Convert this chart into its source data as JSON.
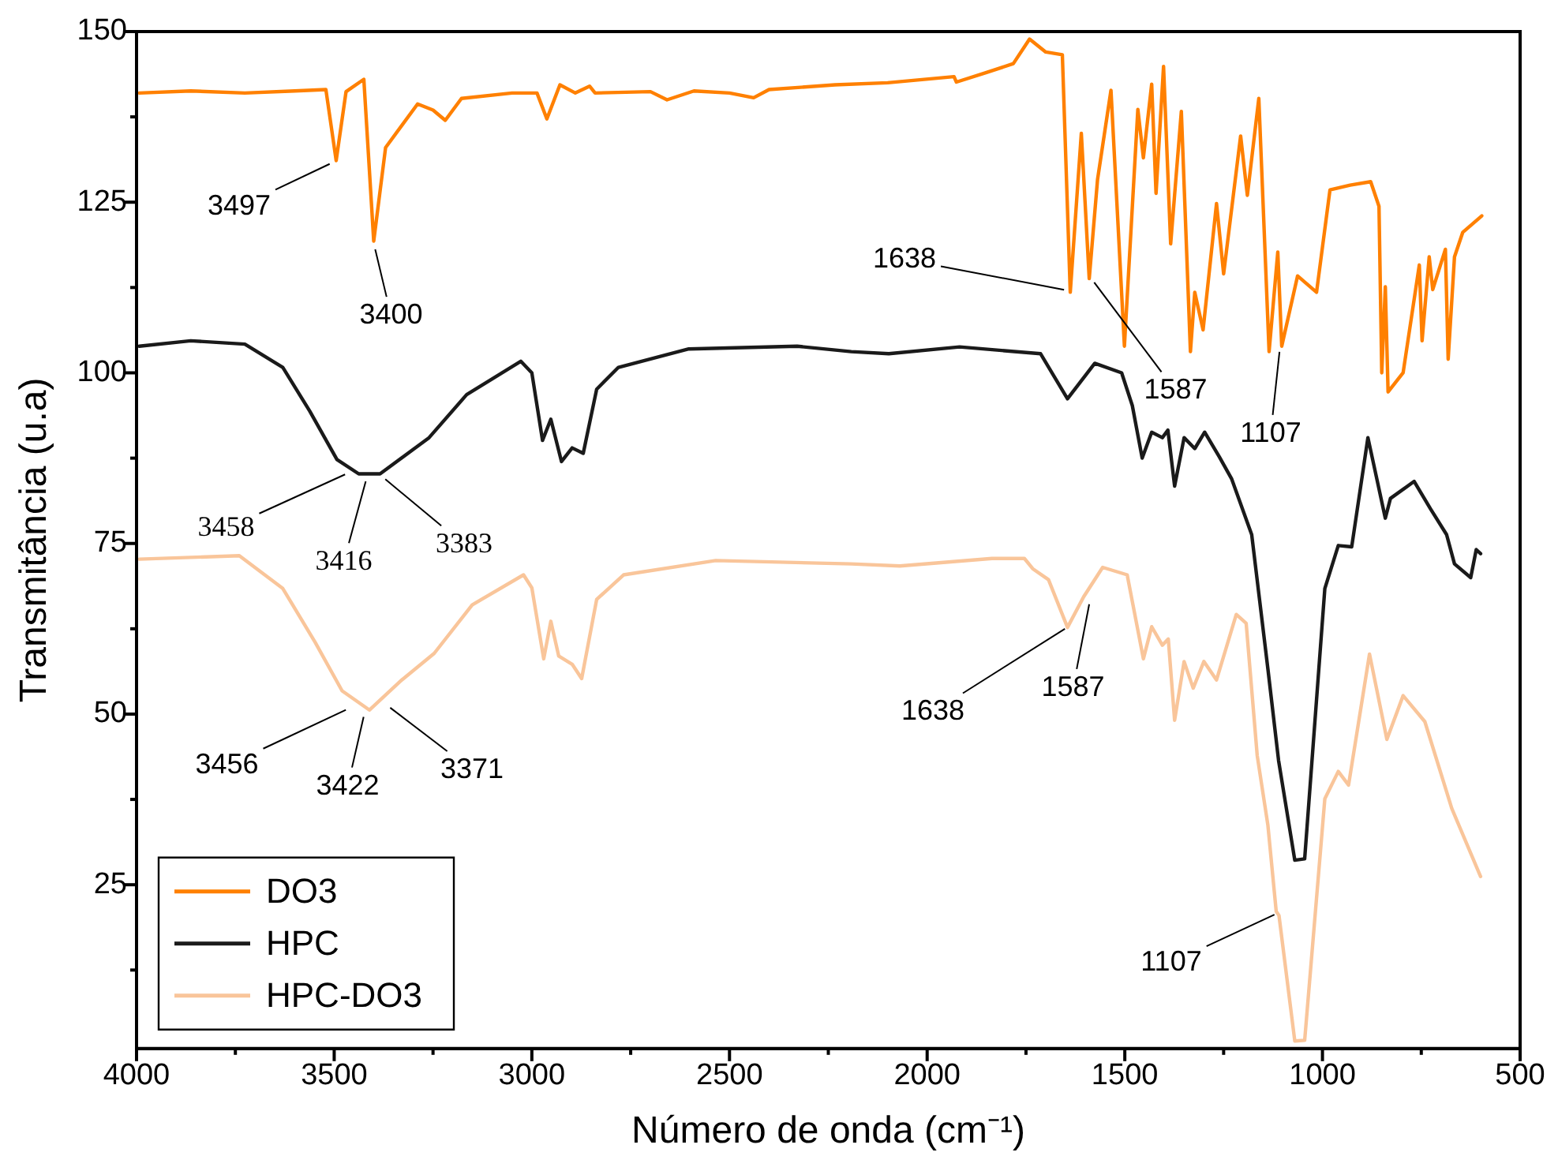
{
  "chart_data": {
    "type": "line",
    "xlabel": "Número de onda (cm⁻¹)",
    "ylabel": "Transmitância (u.a)",
    "xlim": [
      4000,
      500
    ],
    "ylim": [
      1,
      150
    ],
    "xticks": [
      4000,
      {
        "value": 3750,
        "label": null
      },
      3500,
      {
        "value": 3250,
        "label": null
      },
      3000,
      {
        "value": 2750,
        "label": null
      },
      2500,
      {
        "value": 2250,
        "label": null
      },
      2000,
      {
        "value": 1750,
        "label": null
      },
      1500,
      {
        "value": 1250,
        "label": null
      },
      1000,
      {
        "value": 750,
        "label": null
      },
      500
    ],
    "yticks": [
      {
        "value": 12.5,
        "label": null
      },
      25,
      {
        "value": 37.5,
        "label": null
      },
      50,
      {
        "value": 62.5,
        "label": null
      },
      75,
      {
        "value": 87.5,
        "label": null
      },
      100,
      {
        "value": 112.5,
        "label": null
      },
      125,
      {
        "value": 137.5,
        "label": null
      },
      150
    ],
    "grid": false,
    "legend": "bottom left",
    "marker": "none",
    "line_style": "solid",
    "series": [
      {
        "name": "DO3",
        "color": "#ff8000",
        "x": [
          3993,
          3863,
          3726,
          3600,
          3521,
          3495,
          3470,
          3425,
          3400,
          3370,
          3289,
          3250,
          3219,
          3178,
          3050,
          2987,
          2962,
          2929,
          2890,
          2854,
          2840,
          2700,
          2658,
          2590,
          2500,
          2439,
          2400,
          2233,
          2100,
          1932,
          1926,
          1850,
          1782,
          1741,
          1700,
          1658,
          1638,
          1610,
          1590,
          1569,
          1535,
          1501,
          1467,
          1453,
          1432,
          1421,
          1402,
          1384,
          1357,
          1334,
          1323,
          1302,
          1268,
          1250,
          1207,
          1190,
          1161,
          1135,
          1113,
          1103,
          1063,
          1015,
          981,
          930,
          878,
          857,
          850,
          841,
          834,
          796,
          755,
          748,
          730,
          721,
          689,
          682,
          666,
          645,
          597
        ],
        "values": [
          141,
          141.3,
          141,
          141.3,
          141.5,
          131.1,
          141.2,
          143,
          119.3,
          133,
          139.4,
          138.5,
          137,
          140.2,
          141,
          141,
          137.2,
          142.2,
          141,
          142,
          141,
          141.2,
          140,
          141.3,
          141,
          140.3,
          141.5,
          142.2,
          142.5,
          143.4,
          142.6,
          144,
          145.3,
          148.9,
          147,
          146.6,
          111.8,
          135.1,
          113.8,
          128.3,
          141.4,
          103.9,
          138.6,
          131.5,
          142.3,
          126.3,
          144.9,
          118.9,
          138.3,
          103.1,
          111.8,
          106.3,
          124.8,
          114.5,
          134.7,
          126,
          140.2,
          103.1,
          117.7,
          103.9,
          114.2,
          111.8,
          126.8,
          127.5,
          128,
          124.4,
          100,
          112.6,
          97.2,
          100,
          115.8,
          104.7,
          117,
          112.2,
          118.1,
          102,
          117,
          120.6,
          123
        ]
      },
      {
        "name": "HPC",
        "color": "#1a1a1a",
        "x": [
          3993,
          3863,
          3726,
          3630,
          3562,
          3493,
          3438,
          3384,
          3260,
          3165,
          3028,
          3000,
          2973,
          2952,
          2925,
          2898,
          2870,
          2836,
          2781,
          2603,
          2329,
          2192,
          2097,
          1918,
          1713,
          1645,
          1576,
          1508,
          1481,
          1456,
          1432,
          1405,
          1391,
          1374,
          1350,
          1323,
          1298,
          1261,
          1230,
          1179,
          1138,
          1111,
          1070,
          1045,
          994,
          960,
          926,
          885,
          841,
          828,
          768,
          727,
          686,
          666,
          625,
          611,
          600
        ],
        "values": [
          103.9,
          104.7,
          104.2,
          100.8,
          94.4,
          87.3,
          85.2,
          85.2,
          90.5,
          96.8,
          101.7,
          100,
          90.1,
          93.2,
          87,
          89,
          88.2,
          97.6,
          100.8,
          103.5,
          103.9,
          103.1,
          102.8,
          103.8,
          102.8,
          96.2,
          101.4,
          100,
          95.2,
          87.5,
          91.3,
          90.5,
          91.6,
          83.4,
          90.5,
          88.9,
          91.3,
          87.7,
          84.5,
          76.3,
          56.6,
          43.2,
          28.6,
          28.8,
          68.4,
          74.7,
          74.5,
          90.5,
          78.7,
          81.6,
          84.1,
          80.1,
          76.3,
          72,
          70,
          74.1,
          73.5
        ]
      },
      {
        "name": "HPC-DO3",
        "color": "#f9c59a",
        "x": [
          3993,
          3740,
          3630,
          3548,
          3480,
          3411,
          3329,
          3247,
          3151,
          3021,
          3000,
          2970,
          2952,
          2932,
          2898,
          2874,
          2836,
          2768,
          2535,
          2192,
          2069,
          1836,
          1754,
          1733,
          1693,
          1645,
          1604,
          1556,
          1494,
          1453,
          1432,
          1405,
          1390,
          1374,
          1350,
          1327,
          1300,
          1268,
          1218,
          1193,
          1165,
          1138,
          1117,
          1110,
          1070,
          1045,
          994,
          960,
          934,
          881,
          837,
          796,
          741,
          673,
          600
        ],
        "values": [
          72.7,
          73.2,
          68.4,
          60.5,
          53.4,
          50.6,
          55,
          58.9,
          66,
          70.4,
          68.5,
          58.1,
          63.6,
          58.5,
          57.3,
          55.2,
          66.8,
          70.4,
          72.5,
          72,
          71.7,
          72.8,
          72.8,
          71.3,
          69.7,
          62.7,
          67.2,
          71.5,
          70.4,
          58.1,
          62.8,
          60.1,
          61,
          49.1,
          57.7,
          53.8,
          57.7,
          55,
          64.6,
          63.3,
          43.9,
          33.7,
          21.1,
          20.5,
          2.1,
          2.2,
          37.6,
          41.6,
          39.6,
          58.8,
          46.3,
          52.7,
          48.9,
          36.2,
          26.2
        ]
      }
    ],
    "annotations": [
      {
        "text": "3497",
        "x": 3497,
        "y": 131
      },
      {
        "text": "3400",
        "x": 3400,
        "y": 119
      },
      {
        "text": "1638",
        "x": 1638,
        "y": 112
      },
      {
        "text": "1587",
        "x": 1587,
        "y": 114
      },
      {
        "text": "1107",
        "x": 1107,
        "y": 104
      },
      {
        "text": "3458",
        "x": 3458,
        "y": 85.5
      },
      {
        "text": "3416",
        "x": 3416,
        "y": 85
      },
      {
        "text": "3383",
        "x": 3383,
        "y": 85
      },
      {
        "text": "3456",
        "x": 3456,
        "y": 51
      },
      {
        "text": "3422",
        "x": 3422,
        "y": 50.5
      },
      {
        "text": "3371",
        "x": 3371,
        "y": 51.5
      },
      {
        "text": "1638",
        "x": 1638,
        "y": 63
      },
      {
        "text": "1587",
        "x": 1587,
        "y": 67
      },
      {
        "text": "1107",
        "x": 1107,
        "y": 21
      }
    ]
  }
}
